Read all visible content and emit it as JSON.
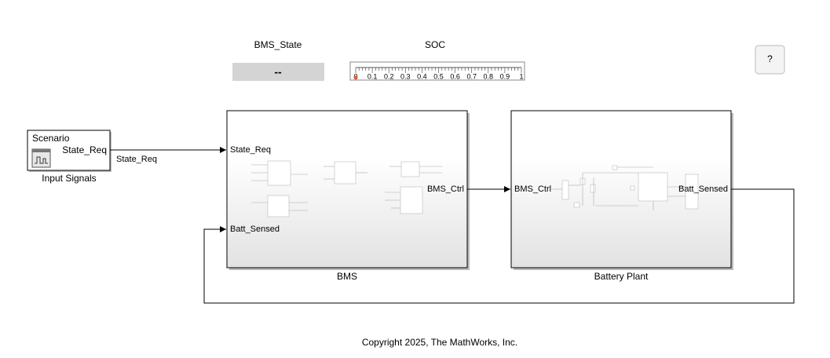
{
  "help_button": "?",
  "displays": {
    "bms_state": {
      "label": "BMS_State",
      "value": "--"
    },
    "soc": {
      "label": "SOC",
      "scale_labels": [
        "0",
        "0.1",
        "0.2",
        "0.3",
        "0.4",
        "0.5",
        "0.6",
        "0.7",
        "0.8",
        "0.9",
        "1"
      ]
    }
  },
  "blocks": {
    "scenario": {
      "title": "Scenario",
      "output": "State_Req",
      "label": "Input Signals"
    },
    "bms": {
      "inputs": [
        "State_Req",
        "Batt_Sensed"
      ],
      "output": "BMS_Ctrl",
      "label": "BMS"
    },
    "battery_plant": {
      "input": "BMS_Ctrl",
      "output": "Batt_Sensed",
      "label": "Battery Plant"
    }
  },
  "signals": {
    "state_req": "State_Req"
  },
  "footer": "Copyright 2025, The MathWorks, Inc."
}
